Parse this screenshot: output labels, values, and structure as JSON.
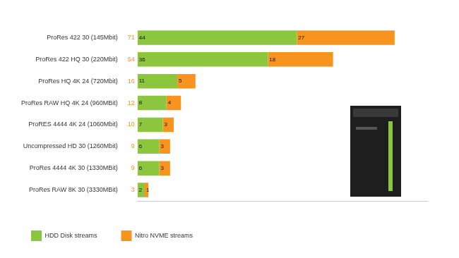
{
  "chart_data": {
    "type": "bar",
    "orientation": "horizontal",
    "stacked": true,
    "categories": [
      "ProRes 422 30 (145Mbit)",
      "ProRes 422 HQ 30 (220Mbit)",
      "ProRes HQ 4K 24 (720Mbit)",
      "ProRes RAW HQ 4K 24 (960MBit)",
      "ProRES 4444 4K 24 (1060Mbit)",
      "Uncompressed HD 30 (1260Mbit)",
      "ProRes 4444 4K 30 (1330MBit)",
      "ProRes RAW 8K 30 (3330MBit)"
    ],
    "series": [
      {
        "name": "HDD Disk streams",
        "color": "#8cc63f",
        "values": [
          44,
          36,
          11,
          8,
          7,
          6,
          6,
          2
        ]
      },
      {
        "name": "Nitro NVME streams",
        "color": "#f7941d",
        "values": [
          27,
          18,
          5,
          4,
          3,
          3,
          3,
          1
        ]
      }
    ],
    "totals": [
      71,
      54,
      16,
      12,
      10,
      9,
      9,
      3
    ],
    "xlim": [
      0,
      80
    ],
    "tick_labels": "y",
    "data_labels": true,
    "grid": false,
    "legend": "bottom-left"
  }
}
